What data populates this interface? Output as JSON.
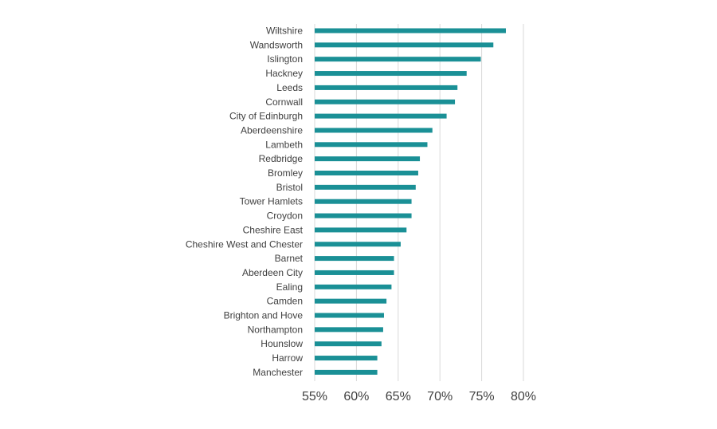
{
  "chart_data": {
    "type": "bar",
    "orientation": "horizontal",
    "categories": [
      "Wiltshire",
      "Wandsworth",
      "Islington",
      "Hackney",
      "Leeds",
      "Cornwall",
      "City of Edinburgh",
      "Aberdeenshire",
      "Lambeth",
      "Redbridge",
      "Bromley",
      "Bristol",
      "Tower Hamlets",
      "Croydon",
      "Cheshire East",
      "Cheshire West and Chester",
      "Barnet",
      "Aberdeen City",
      "Ealing",
      "Camden",
      "Brighton and Hove",
      "Northampton",
      "Hounslow",
      "Harrow",
      "Manchester"
    ],
    "values": [
      0.779,
      0.764,
      0.749,
      0.732,
      0.721,
      0.718,
      0.708,
      0.691,
      0.685,
      0.676,
      0.674,
      0.671,
      0.666,
      0.666,
      0.66,
      0.653,
      0.645,
      0.645,
      0.642,
      0.636,
      0.633,
      0.632,
      0.63,
      0.625,
      0.625
    ],
    "xlim": [
      0.55,
      0.8
    ],
    "xticks": [
      0.55,
      0.6,
      0.65,
      0.7,
      0.75,
      0.8
    ],
    "xtick_labels": [
      "55%",
      "60%",
      "65%",
      "70%",
      "75%",
      "80%"
    ],
    "grid": "vertical",
    "bar_color": "#1a9096"
  }
}
